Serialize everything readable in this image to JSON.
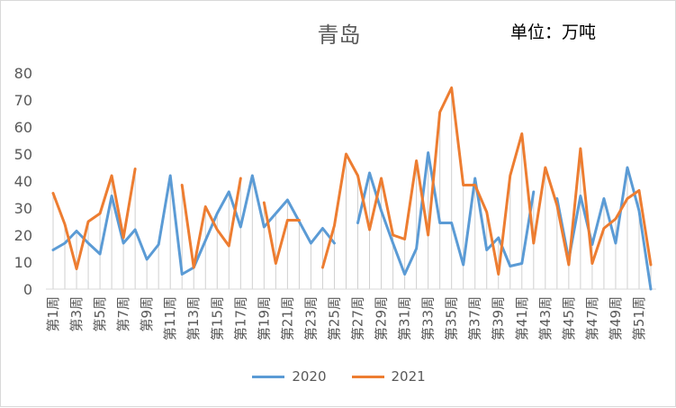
{
  "chart_data": {
    "type": "line",
    "title": "青岛",
    "unit": "单位：万吨",
    "ylim": [
      0,
      80
    ],
    "yticks": [
      0,
      10,
      20,
      30,
      40,
      50,
      60,
      70,
      80
    ],
    "grid": false,
    "legend_position": "bottom",
    "categories": [
      "第1周",
      "第2周",
      "第3周",
      "第4周",
      "第5周",
      "第6周",
      "第7周",
      "第8周",
      "第9周",
      "第10周",
      "第11周",
      "第12周",
      "第13周",
      "第14周",
      "第15周",
      "第16周",
      "第17周",
      "第18周",
      "第19周",
      "第20周",
      "第21周",
      "第22周",
      "第23周",
      "第24周",
      "第25周",
      "第26周",
      "第27周",
      "第28周",
      "第29周",
      "第30周",
      "第31周",
      "第32周",
      "第33周",
      "第34周",
      "第35周",
      "第36周",
      "第37周",
      "第38周",
      "第39周",
      "第40周",
      "第41周",
      "第42周",
      "第43周",
      "第44周",
      "第45周",
      "第46周",
      "第47周",
      "第48周",
      "第49周",
      "第50周",
      "第51周",
      "第52周"
    ],
    "tick_labels": [
      "第1周",
      "第3周",
      "第5周",
      "第7周",
      "第9周",
      "第11周",
      "第13周",
      "第15周",
      "第17周",
      "第19周",
      "第21周",
      "第23周",
      "第25周",
      "第27周",
      "第29周",
      "第31周",
      "第33周",
      "第35周",
      "第37周",
      "第39周",
      "第41周",
      "第43周",
      "第45周",
      "第47周",
      "第49周",
      "第51周"
    ],
    "series": [
      {
        "name": "2020",
        "color": "#5b9bd5",
        "values": [
          14.5,
          17,
          21.5,
          17,
          13,
          34.5,
          17,
          22,
          11,
          16.5,
          42,
          5.5,
          8,
          18,
          28,
          36,
          23,
          42,
          23,
          28,
          33,
          25,
          17,
          22.5,
          17,
          null,
          24.5,
          43,
          29,
          17,
          5.5,
          15,
          50.5,
          24.5,
          24.5,
          9,
          41,
          14.5,
          19,
          8.5,
          9.5,
          36,
          null,
          33.5,
          11,
          34.5,
          16.5,
          33.5,
          17,
          45,
          29,
          0
        ]
      },
      {
        "name": "2021",
        "color": "#ed7d31",
        "values": [
          35.5,
          24,
          7.5,
          25,
          28,
          42,
          19,
          44.5,
          null,
          null,
          null,
          38.5,
          8,
          30.5,
          22,
          16,
          41,
          null,
          32,
          9.5,
          25.5,
          25.5,
          null,
          8,
          23.5,
          50,
          42,
          22,
          41,
          20,
          18.5,
          47.5,
          20,
          65.5,
          74.5,
          38.5,
          38.5,
          28.5,
          5.5,
          42,
          57.5,
          17,
          45,
          31,
          9,
          52,
          9.5,
          22.5,
          26,
          33.5,
          36.5,
          9
        ]
      }
    ]
  }
}
